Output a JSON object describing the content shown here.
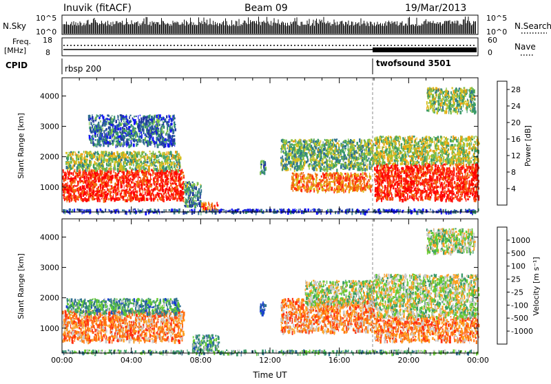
{
  "header": {
    "station": "Inuvik (fitACF)",
    "beam": "Beam 09",
    "date": "19/Mar/2013"
  },
  "strip_panels": {
    "nsky": {
      "label": "N.Sky",
      "ticks": [
        "10^5",
        "10^0"
      ]
    },
    "nsearch": {
      "label": "N.Search",
      "ticks": [
        "10^5",
        "10^0"
      ]
    },
    "freq": {
      "label_line1": "Freq.",
      "label_line2": "[MHz]",
      "ticks": [
        "18",
        "8"
      ]
    },
    "nave": {
      "label": "Nave",
      "ticks": [
        "60",
        "0"
      ]
    },
    "cpid": {
      "label": "CPID",
      "modes": [
        {
          "name": "rbsp 200",
          "start_hour": 0,
          "end_hour": 18
        },
        {
          "name": "twofsound 3501",
          "start_hour": 18,
          "end_hour": 24
        }
      ]
    }
  },
  "chart_data": [
    {
      "type": "heatmap",
      "panel": "power",
      "ylabel": "Slant Range [km]",
      "xrange_hours": [
        0,
        24
      ],
      "yrange_km": [
        180,
        4600
      ],
      "yticks": [
        "1000",
        "2000",
        "3000",
        "4000"
      ],
      "colorbar": {
        "label": "Power [dB]",
        "range": [
          0,
          30
        ],
        "tick_labels": [
          "4",
          "8",
          "12",
          "16",
          "20",
          "24",
          "28"
        ],
        "colors": [
          "#1010ff",
          "#2238a0",
          "#2f6f90",
          "#3a9a6a",
          "#7cc04a",
          "#d8c020",
          "#f0a010",
          "#f07010",
          "#ff3010",
          "#ff0000"
        ]
      },
      "echo_regions": [
        {
          "t_start": 0.0,
          "t_end": 7.0,
          "r_min": 600,
          "r_max": 1600,
          "level": 0.95
        },
        {
          "t_start": 0.2,
          "t_end": 6.8,
          "r_min": 1600,
          "r_max": 2200,
          "level": 0.45
        },
        {
          "t_start": 1.5,
          "t_end": 6.5,
          "r_min": 2400,
          "r_max": 3400,
          "level": 0.2
        },
        {
          "t_start": 7.0,
          "t_end": 8.0,
          "r_min": 400,
          "r_max": 1200,
          "level": 0.3
        },
        {
          "t_start": 8.0,
          "t_end": 9.0,
          "r_min": 280,
          "r_max": 520,
          "level": 0.8
        },
        {
          "t_start": 11.4,
          "t_end": 11.7,
          "r_min": 1500,
          "r_max": 1900,
          "level": 0.3
        },
        {
          "t_start": 12.6,
          "t_end": 18.0,
          "r_min": 1600,
          "r_max": 2600,
          "level": 0.4
        },
        {
          "t_start": 13.2,
          "t_end": 17.8,
          "r_min": 900,
          "r_max": 1500,
          "level": 0.75
        },
        {
          "t_start": 18.0,
          "t_end": 24.0,
          "r_min": 600,
          "r_max": 1800,
          "level": 0.95
        },
        {
          "t_start": 18.0,
          "t_end": 24.0,
          "r_min": 1800,
          "r_max": 2700,
          "level": 0.5
        },
        {
          "t_start": 21.0,
          "t_end": 23.8,
          "r_min": 3500,
          "r_max": 4300,
          "level": 0.45
        },
        {
          "t_start": 0.0,
          "t_end": 24.0,
          "r_min": 200,
          "r_max": 300,
          "level": 0.1
        }
      ]
    },
    {
      "type": "heatmap",
      "panel": "velocity",
      "ylabel": "Slant Range [km]",
      "xlabel": "Time UT",
      "xrange_hours": [
        0,
        24
      ],
      "yrange_km": [
        180,
        4600
      ],
      "yticks": [
        "1000",
        "2000",
        "3000",
        "4000"
      ],
      "xticks": [
        "00:00",
        "04:00",
        "08:00",
        "12:00",
        "16:00",
        "20:00",
        "00:00"
      ],
      "colorbar": {
        "label": "Velocity [m s⁻¹]",
        "tick_labels": [
          "1000",
          "500",
          "100",
          "25",
          "-25",
          "-100",
          "-500",
          "-1000"
        ],
        "colors": [
          "#1a3fd0",
          "#2f6f90",
          "#3a9a6a",
          "#66cc33",
          "#c8c8c8",
          "#ffa020",
          "#ff7010",
          "#ff3010",
          "#ff0000"
        ]
      },
      "echo_regions": [
        {
          "t_start": 0.0,
          "t_end": 7.0,
          "r_min": 600,
          "r_max": 1600,
          "level": 0.7
        },
        {
          "t_start": 0.2,
          "t_end": 6.8,
          "r_min": 1500,
          "r_max": 2000,
          "level": 0.25
        },
        {
          "t_start": 7.5,
          "t_end": 9.0,
          "r_min": 300,
          "r_max": 800,
          "level": 0.25
        },
        {
          "t_start": 11.4,
          "t_end": 11.7,
          "r_min": 1500,
          "r_max": 1900,
          "level": 0.0
        },
        {
          "t_start": 12.6,
          "t_end": 18.0,
          "r_min": 900,
          "r_max": 2000,
          "level": 0.7
        },
        {
          "t_start": 14.0,
          "t_end": 18.0,
          "r_min": 1800,
          "r_max": 2600,
          "level": 0.45
        },
        {
          "t_start": 18.0,
          "t_end": 24.0,
          "r_min": 600,
          "r_max": 1400,
          "level": 0.7
        },
        {
          "t_start": 18.0,
          "t_end": 24.0,
          "r_min": 1400,
          "r_max": 2800,
          "level": 0.45
        },
        {
          "t_start": 21.0,
          "t_end": 23.8,
          "r_min": 3500,
          "r_max": 4300,
          "level": 0.45
        },
        {
          "t_start": 0.0,
          "t_end": 24.0,
          "r_min": 200,
          "r_max": 300,
          "level": 0.3
        }
      ]
    }
  ]
}
